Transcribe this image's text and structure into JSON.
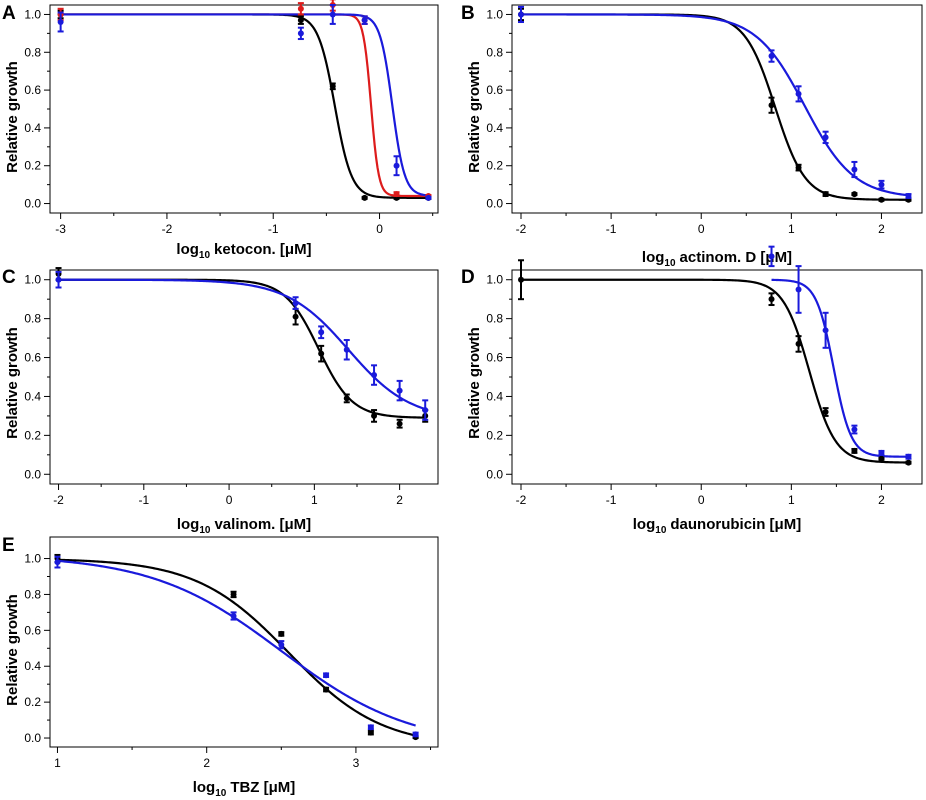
{
  "chart_data": [
    {
      "panel": "A",
      "type": "line",
      "ylabel": "Relative growth",
      "xlabel": "ketocon. [μM]",
      "xlabel_prefix": "log",
      "xlabel_sub": "10",
      "xlim": [
        -3.1,
        0.55
      ],
      "ylim": [
        -0.05,
        1.05
      ],
      "xticks": [
        -3,
        -2,
        -1,
        0
      ],
      "xtick_labels": [
        "-3",
        "-2",
        "-1",
        "0"
      ],
      "yticks": [
        0.0,
        0.2,
        0.4,
        0.6,
        0.8,
        1.0
      ],
      "ytick_labels": [
        "0.0",
        "0.2",
        "0.4",
        "0.6",
        "0.8",
        "1.0"
      ],
      "series": [
        {
          "color": "#000000",
          "curve": {
            "top": 1.0,
            "bottom": 0.03,
            "logEC50": -0.42,
            "hill": 5.5
          },
          "points": [
            [
              -3,
              1.0,
              0.02
            ],
            [
              -0.74,
              0.97,
              0.02
            ],
            [
              -0.44,
              0.62,
              0.015
            ],
            [
              -0.14,
              0.03,
              0.005
            ],
            [
              0.16,
              0.03,
              0.005
            ],
            [
              0.46,
              0.03,
              0.005
            ]
          ]
        },
        {
          "color": "#dd1c1c",
          "curve": {
            "top": 1.0,
            "bottom": 0.04,
            "logEC50": -0.08,
            "hill": 12
          },
          "points": [
            [
              -3,
              1.0,
              0.03
            ],
            [
              -0.74,
              1.03,
              0.03
            ],
            [
              -0.44,
              1.05,
              0.03
            ],
            [
              -0.14,
              0.97,
              0.02
            ],
            [
              0.16,
              0.05,
              0.01
            ],
            [
              0.46,
              0.04,
              0.005
            ]
          ]
        },
        {
          "color": "#1a1adb",
          "curve": {
            "top": 1.0,
            "bottom": 0.04,
            "logEC50": 0.12,
            "hill": 7.5
          },
          "points": [
            [
              -3,
              0.96,
              0.05
            ],
            [
              -0.74,
              0.9,
              0.03
            ],
            [
              -0.44,
              1.0,
              0.05
            ],
            [
              -0.14,
              0.97,
              0.02
            ],
            [
              0.16,
              0.2,
              0.05
            ],
            [
              0.46,
              0.03,
              0.005
            ]
          ]
        }
      ]
    },
    {
      "panel": "B",
      "type": "line",
      "ylabel": "Relative growth",
      "xlabel": "actinom. D [μM]",
      "xlabel_prefix": "log",
      "xlabel_sub": "10",
      "xlim": [
        -2.1,
        2.45
      ],
      "ylim": [
        -0.05,
        1.05
      ],
      "xticks": [
        -2,
        -1,
        0,
        1,
        2
      ],
      "xtick_labels": [
        "-2",
        "-1",
        "0",
        "1",
        "2"
      ],
      "yticks": [
        0.0,
        0.2,
        0.4,
        0.6,
        0.8,
        1.0
      ],
      "ytick_labels": [
        "0.0",
        "0.2",
        "0.4",
        "0.6",
        "0.8",
        "1.0"
      ],
      "series": [
        {
          "color": "#000000",
          "curve": {
            "top": 1.0,
            "bottom": 0.02,
            "logEC50": 0.82,
            "hill": 2.6
          },
          "points": [
            [
              -2,
              1.0,
              0.03
            ],
            [
              0.78,
              0.52,
              0.04
            ],
            [
              1.08,
              0.19,
              0.015
            ],
            [
              1.38,
              0.05,
              0.01
            ],
            [
              1.7,
              0.05,
              0.005
            ],
            [
              2.0,
              0.02,
              0.005
            ],
            [
              2.3,
              0.02,
              0.005
            ]
          ]
        },
        {
          "color": "#1a1adb",
          "curve": {
            "top": 1.0,
            "bottom": 0.03,
            "logEC50": 1.15,
            "hill": 1.6
          },
          "points": [
            [
              -2,
              1.0,
              0.04
            ],
            [
              0.78,
              0.78,
              0.03
            ],
            [
              1.08,
              0.58,
              0.04
            ],
            [
              1.38,
              0.35,
              0.03
            ],
            [
              1.7,
              0.18,
              0.04
            ],
            [
              2.0,
              0.1,
              0.02
            ],
            [
              2.3,
              0.04,
              0.01
            ]
          ]
        }
      ]
    },
    {
      "panel": "C",
      "type": "line",
      "ylabel": "Relative growth",
      "xlabel": "valinom. [μM]",
      "xlabel_prefix": "log",
      "xlabel_sub": "10",
      "xlim": [
        -2.1,
        2.45
      ],
      "ylim": [
        -0.05,
        1.05
      ],
      "xticks": [
        -2,
        -1,
        0,
        1,
        2
      ],
      "xtick_labels": [
        "-2",
        "-1",
        "0",
        "1",
        "2"
      ],
      "yticks": [
        0.0,
        0.2,
        0.4,
        0.6,
        0.8,
        1.0
      ],
      "ytick_labels": [
        "0.0",
        "0.2",
        "0.4",
        "0.6",
        "0.8",
        "1.0"
      ],
      "series": [
        {
          "color": "#000000",
          "curve": {
            "top": 1.0,
            "bottom": 0.29,
            "logEC50": 1.05,
            "hill": 2.2
          },
          "points": [
            [
              -2,
              1.03,
              0.03
            ],
            [
              0.78,
              0.81,
              0.04
            ],
            [
              1.08,
              0.62,
              0.04
            ],
            [
              1.38,
              0.39,
              0.02
            ],
            [
              1.7,
              0.3,
              0.03
            ],
            [
              2.0,
              0.26,
              0.02
            ],
            [
              2.3,
              0.3,
              0.03
            ]
          ]
        },
        {
          "color": "#1a1adb",
          "curve": {
            "top": 1.0,
            "bottom": 0.28,
            "logEC50": 1.4,
            "hill": 1.2
          },
          "points": [
            [
              -2,
              1.0,
              0.04
            ],
            [
              0.78,
              0.88,
              0.03
            ],
            [
              1.08,
              0.73,
              0.03
            ],
            [
              1.38,
              0.64,
              0.05
            ],
            [
              1.7,
              0.51,
              0.05
            ],
            [
              2.0,
              0.43,
              0.05
            ],
            [
              2.3,
              0.33,
              0.05
            ]
          ]
        }
      ]
    },
    {
      "panel": "D",
      "type": "line",
      "ylabel": "Relative growth",
      "xlabel": "daunorubicin [μM]",
      "xlabel_prefix": "log",
      "xlabel_sub": "10",
      "xlim": [
        -2.1,
        2.45
      ],
      "ylim": [
        -0.05,
        1.05
      ],
      "xticks": [
        -2,
        -1,
        0,
        1,
        2
      ],
      "xtick_labels": [
        "-2",
        "-1",
        "0",
        "1",
        "2"
      ],
      "yticks": [
        0.0,
        0.2,
        0.4,
        0.6,
        0.8,
        1.0
      ],
      "ytick_labels": [
        "0.0",
        "0.2",
        "0.4",
        "0.6",
        "0.8",
        "1.0"
      ],
      "series": [
        {
          "color": "#000000",
          "curve": {
            "top": 1.0,
            "bottom": 0.06,
            "logEC50": 1.2,
            "hill": 3.0
          },
          "points": [
            [
              -2,
              1.0,
              0.1
            ],
            [
              0.78,
              0.9,
              0.03
            ],
            [
              1.08,
              0.67,
              0.04
            ],
            [
              1.38,
              0.32,
              0.02
            ],
            [
              1.7,
              0.12,
              0.01
            ],
            [
              2.0,
              0.08,
              0.005
            ],
            [
              2.3,
              0.06,
              0.005
            ]
          ]
        },
        {
          "color": "#1a1adb",
          "curve": {
            "top": 1.0,
            "bottom": 0.09,
            "logEC50": 1.47,
            "hill": 4.5
          },
          "points": [
            [
              0.78,
              1.12,
              0.05
            ],
            [
              1.08,
              0.95,
              0.12
            ],
            [
              1.38,
              0.74,
              0.09
            ],
            [
              1.7,
              0.23,
              0.02
            ],
            [
              2.0,
              0.11,
              0.01
            ],
            [
              2.3,
              0.09,
              0.01
            ]
          ]
        }
      ]
    },
    {
      "panel": "E",
      "type": "line",
      "ylabel": "Relative growth",
      "xlabel": "TBZ [μM]",
      "xlabel_prefix": "log",
      "xlabel_sub": "10",
      "xlim": [
        0.95,
        3.55
      ],
      "ylim": [
        -0.05,
        1.12
      ],
      "xticks": [
        1,
        2,
        3
      ],
      "xtick_labels": [
        "1",
        "2",
        "3"
      ],
      "yticks": [
        0.0,
        0.2,
        0.4,
        0.6,
        0.8,
        1.0
      ],
      "ytick_labels": [
        "0.0",
        "0.2",
        "0.4",
        "0.6",
        "0.8",
        "1.0"
      ],
      "series": [
        {
          "color": "#000000",
          "curve": {
            "top": 1.0,
            "bottom": -0.05,
            "logEC50": 2.55,
            "hill": 1.4
          },
          "points": [
            [
              1.0,
              1.0,
              0.02
            ],
            [
              2.18,
              0.8,
              0.015
            ],
            [
              2.5,
              0.58,
              0.01
            ],
            [
              2.8,
              0.27,
              0.01
            ],
            [
              3.1,
              0.03,
              0.01
            ],
            [
              3.4,
              0.005,
              0.005
            ]
          ]
        },
        {
          "color": "#1a1adb",
          "curve": {
            "top": 1.02,
            "bottom": -0.05,
            "logEC50": 2.5,
            "hill": 1.0
          },
          "points": [
            [
              1.0,
              0.98,
              0.03
            ],
            [
              2.18,
              0.68,
              0.02
            ],
            [
              2.5,
              0.52,
              0.02
            ],
            [
              2.8,
              0.35,
              0.01
            ],
            [
              3.1,
              0.06,
              0.01
            ],
            [
              3.4,
              0.02,
              0.01
            ]
          ]
        }
      ]
    }
  ]
}
